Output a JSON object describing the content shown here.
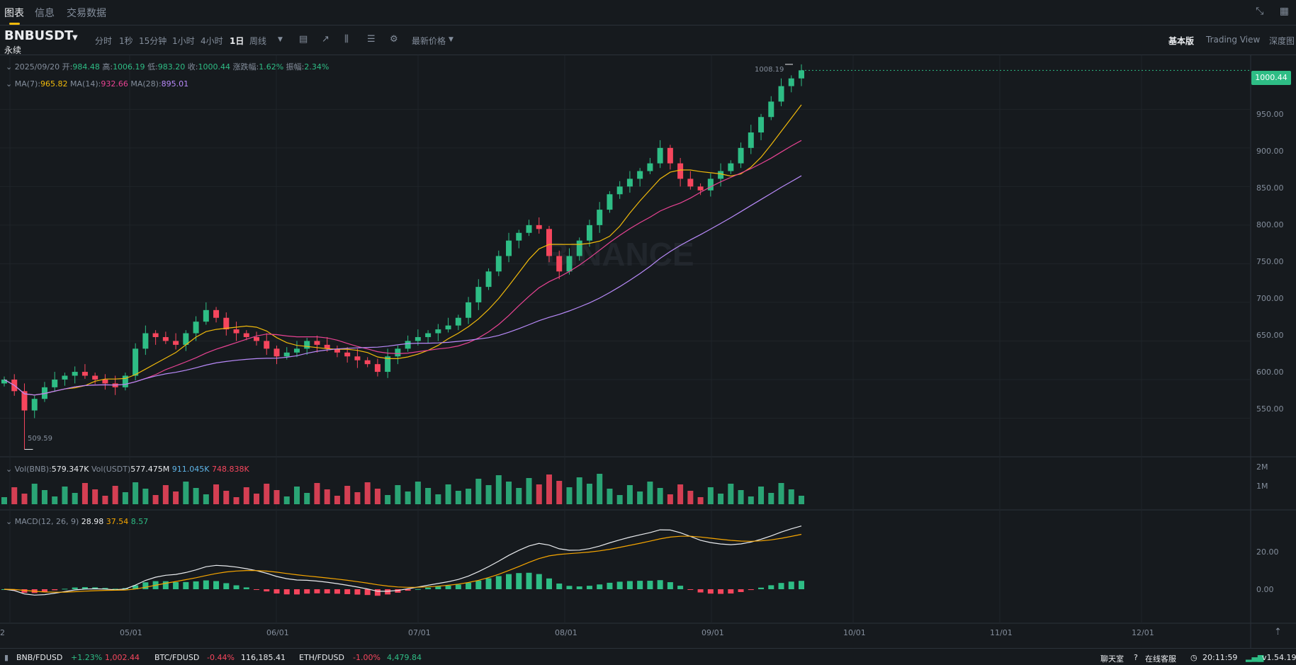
{
  "tabs": [
    "图表",
    "信息",
    "交易数据"
  ],
  "symbol": {
    "name": "BNBUSDT",
    "sub": "永续"
  },
  "intervals": [
    "分时",
    "1秒",
    "15分钟",
    "1小时",
    "4小时",
    "1日",
    "周线"
  ],
  "active_interval": "1日",
  "price_type": "最新价格",
  "views": [
    "基本版",
    "Trading View",
    "深度图"
  ],
  "active_view": "基本版",
  "ohlc": {
    "date": "2025/09/20",
    "open_label": "开:",
    "open": "984.48",
    "high_label": "高:",
    "high": "1006.19",
    "low_label": "低:",
    "low": "983.20",
    "close_label": "收:",
    "close": "1000.44",
    "change_label": "涨跌幅:",
    "change": "1.62%",
    "amp_label": "振幅:",
    "amp": "2.34%"
  },
  "ma": {
    "ma7_label": "MA(7):",
    "ma7": "965.82",
    "ma14_label": "MA(14):",
    "ma14": "932.66",
    "ma28_label": "MA(28):",
    "ma28": "895.01"
  },
  "vol": {
    "bnb_label": "Vol(BNB):",
    "bnb": "579.347K",
    "usdt_label": "Vol(USDT)",
    "usdt": "577.475M",
    "v1": "911.045K",
    "v2": "748.838K"
  },
  "macd": {
    "label": "MACD(12, 26, 9)",
    "dif": "28.98",
    "dea": "37.54",
    "hist": "8.57"
  },
  "watermark": "BINANCE",
  "high_marker": "1008.19",
  "low_marker": "509.59",
  "last_price": "1000.44",
  "price_axis": [
    "950.00",
    "900.00",
    "850.00",
    "800.00",
    "750.00",
    "700.00",
    "650.00",
    "600.00",
    "550.00"
  ],
  "vol_axis": [
    "2M",
    "1M"
  ],
  "macd_axis": [
    "20.00",
    "0.00"
  ],
  "date_axis": [
    "2",
    "05/01",
    "06/01",
    "07/01",
    "08/01",
    "09/01",
    "10/01",
    "11/01",
    "12/01"
  ],
  "tickers": [
    {
      "pair": "BNB/FDUSD",
      "change": "+1.23%",
      "price": "1,002.44",
      "dir": "up"
    },
    {
      "pair": "BTC/FDUSD",
      "change": "-0.44%",
      "price": "116,185.41",
      "dir": "down"
    },
    {
      "pair": "ETH/FDUSD",
      "change": "-1.00%",
      "price": "4,479.84",
      "dir": "down"
    }
  ],
  "footer": {
    "chat": "聊天室",
    "support": "在线客服",
    "time": "20:11:59",
    "version": "v1.54.19"
  },
  "colors": {
    "up": "#2ebd85",
    "down": "#f6465d",
    "ma7": "#f0b90b",
    "ma14": "#e84393",
    "ma28": "#b98afa"
  },
  "chart_data": {
    "type": "candlestick",
    "note_interval": "1日",
    "last_close": 1000.44,
    "high": 1008.19,
    "low": 509.59,
    "ylim": [
      500,
      1020
    ],
    "closes_approx": [
      600,
      585,
      560,
      575,
      590,
      600,
      605,
      610,
      605,
      600,
      595,
      590,
      605,
      640,
      660,
      655,
      650,
      645,
      660,
      675,
      690,
      680,
      665,
      660,
      655,
      650,
      640,
      630,
      635,
      640,
      650,
      645,
      640,
      635,
      630,
      625,
      620,
      610,
      630,
      640,
      650,
      655,
      660,
      665,
      670,
      680,
      700,
      720,
      740,
      760,
      780,
      790,
      800,
      795,
      760,
      740,
      760,
      780,
      800,
      820,
      840,
      850,
      860,
      870,
      880,
      900,
      880,
      860,
      850,
      845,
      860,
      870,
      880,
      900,
      920,
      940,
      960,
      980,
      990,
      1000.44
    ]
  }
}
